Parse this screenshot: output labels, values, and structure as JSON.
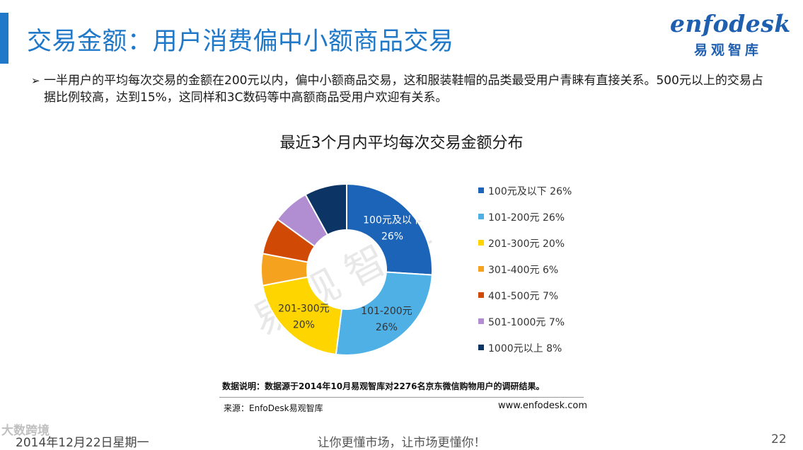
{
  "slide": {
    "title": "交易金额：用户消费偏中小额商品交易",
    "bullet": "一半用户的平均每次交易的金额在200元以内，偏中小额商品交易，这和服装鞋帽的品类最受用户青睐有直接关系。500元以上的交易占据比例较高，达到15%，这同样和3C数码等中高额商品受用户欢迎有关系。",
    "bullet_marker": "➢"
  },
  "logo": {
    "wordmark": "enfodesk",
    "tm": "™",
    "cn": "易观智库"
  },
  "watermark": "易 观 智 库",
  "chart_data": {
    "type": "pie",
    "donut": true,
    "title": "最近3个月内平均每次交易金额分布",
    "categories": [
      "100元及以下",
      "101-200元",
      "201-300元",
      "301-400元",
      "401-500元",
      "501-1000元",
      "1000元以上"
    ],
    "values": [
      26,
      26,
      20,
      6,
      7,
      7,
      8
    ],
    "unit": "%",
    "colors": [
      "#1b64b8",
      "#4fb0e6",
      "#ffd500",
      "#f5a31f",
      "#d04a05",
      "#b08ed1",
      "#0c3464"
    ],
    "legend_labels": [
      "100元及以下 26%",
      "101-200元 26%",
      "201-300元 20%",
      "301-400元 6%",
      "401-500元 7%",
      "501-1000元 7%",
      "1000元以上 8%"
    ],
    "data_labels": [
      {
        "index": 0,
        "name": "100元及以下",
        "value": "26%"
      },
      {
        "index": 1,
        "name": "101-200元",
        "value": "26%"
      },
      {
        "index": 2,
        "name": "201-300元",
        "value": "20%"
      }
    ],
    "legend_position": "right"
  },
  "notes": {
    "data_note": "数据说明：数据源于2014年10月易观智库对2276名京东微信购物用户的调研结果。",
    "source": "来源：EnfoDesk易观智库",
    "site": "www.enfodesk.com"
  },
  "footer": {
    "date": "2014年12月22日星期一",
    "slogan": "让你更懂市场，让市场更懂你！",
    "page": "22",
    "overlay": "大数跨境"
  }
}
